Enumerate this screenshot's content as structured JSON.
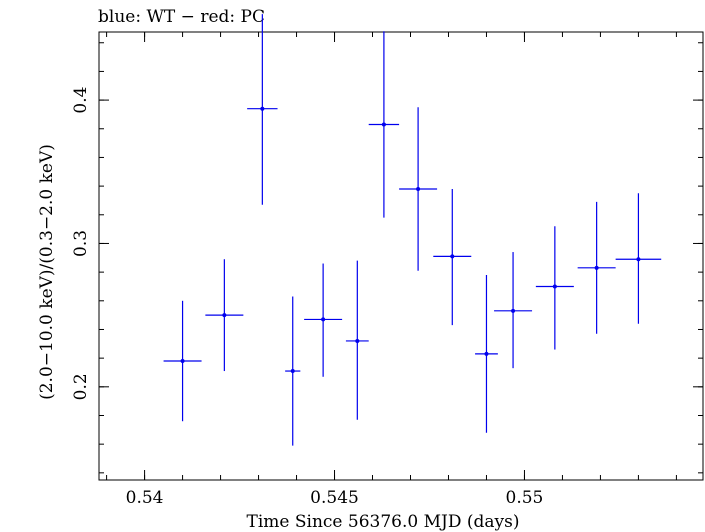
{
  "chart_data": {
    "type": "scatter",
    "title": "blue: WT − red: PC",
    "xlabel": "Time Since 56376.0 MJD (days)",
    "ylabel": "(2.0−10.0 keV)/(0.3−2.0 keV)",
    "xlim": [
      0.5388,
      0.5547
    ],
    "ylim": [
      0.135,
      0.4475
    ],
    "xticks": [
      {
        "value": 0.54,
        "label": "0.54"
      },
      {
        "value": 0.545,
        "label": "0.545"
      },
      {
        "value": 0.55,
        "label": "0.55"
      }
    ],
    "yticks": [
      {
        "value": 0.2,
        "label": "0.2"
      },
      {
        "value": 0.3,
        "label": "0.3"
      },
      {
        "value": 0.4,
        "label": "0.4"
      }
    ],
    "xminor_step": 0.001,
    "yminor_step": 0.02,
    "grid": false,
    "series": [
      {
        "name": "WT",
        "color": "#0000ee",
        "points": [
          {
            "x": 0.541,
            "y": 0.218,
            "xerr": 0.0005,
            "ylo": 0.176,
            "yhi": 0.26
          },
          {
            "x": 0.5421,
            "y": 0.25,
            "xerr": 0.0005,
            "ylo": 0.211,
            "yhi": 0.289
          },
          {
            "x": 0.5431,
            "y": 0.394,
            "xerr": 0.0004,
            "ylo": 0.327,
            "yhi": 0.46
          },
          {
            "x": 0.5439,
            "y": 0.211,
            "xerr": 0.0002,
            "ylo": 0.159,
            "yhi": 0.263
          },
          {
            "x": 0.5447,
            "y": 0.247,
            "xerr": 0.0005,
            "ylo": 0.207,
            "yhi": 0.286
          },
          {
            "x": 0.5456,
            "y": 0.232,
            "xerr": 0.0003,
            "ylo": 0.177,
            "yhi": 0.288
          },
          {
            "x": 0.5463,
            "y": 0.383,
            "xerr": 0.0004,
            "ylo": 0.318,
            "yhi": 0.448
          },
          {
            "x": 0.5472,
            "y": 0.338,
            "xerr": 0.0005,
            "ylo": 0.281,
            "yhi": 0.395
          },
          {
            "x": 0.5481,
            "y": 0.291,
            "xerr": 0.0005,
            "ylo": 0.243,
            "yhi": 0.338
          },
          {
            "x": 0.549,
            "y": 0.223,
            "xerr": 0.0003,
            "ylo": 0.168,
            "yhi": 0.278
          },
          {
            "x": 0.5497,
            "y": 0.253,
            "xerr": 0.0005,
            "ylo": 0.213,
            "yhi": 0.294
          },
          {
            "x": 0.5508,
            "y": 0.27,
            "xerr": 0.0005,
            "ylo": 0.226,
            "yhi": 0.312
          },
          {
            "x": 0.5519,
            "y": 0.283,
            "xerr": 0.0005,
            "ylo": 0.237,
            "yhi": 0.329
          },
          {
            "x": 0.553,
            "y": 0.289,
            "xerr": 0.0006,
            "ylo": 0.244,
            "yhi": 0.335
          }
        ]
      }
    ]
  }
}
